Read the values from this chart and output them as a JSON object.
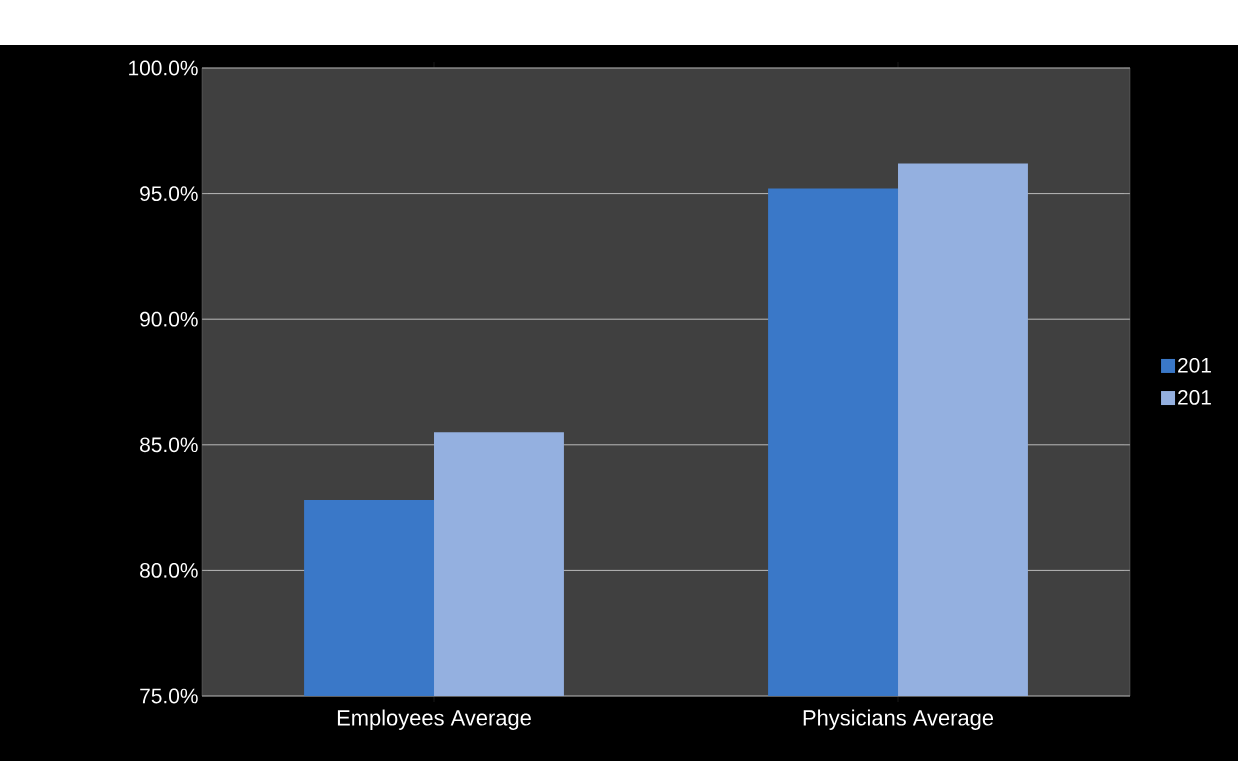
{
  "chart_data": {
    "type": "bar",
    "categories": [
      "Employees Average",
      "Physicians Average"
    ],
    "series": [
      {
        "name": "201",
        "color": "#3a78c8",
        "values": [
          82.8,
          95.2
        ]
      },
      {
        "name": "201",
        "color": "#94b0e0",
        "values": [
          85.5,
          96.2
        ]
      }
    ],
    "ylim": [
      75,
      100
    ],
    "yticks": [
      {
        "value": 75,
        "label": "75.0%"
      },
      {
        "value": 80,
        "label": "80.0%"
      },
      {
        "value": 85,
        "label": "85.0%"
      },
      {
        "value": 90,
        "label": "90.0%"
      },
      {
        "value": 95,
        "label": "95.0%"
      },
      {
        "value": 100,
        "label": "100.0%"
      }
    ],
    "grid": "y",
    "legend": "right"
  }
}
